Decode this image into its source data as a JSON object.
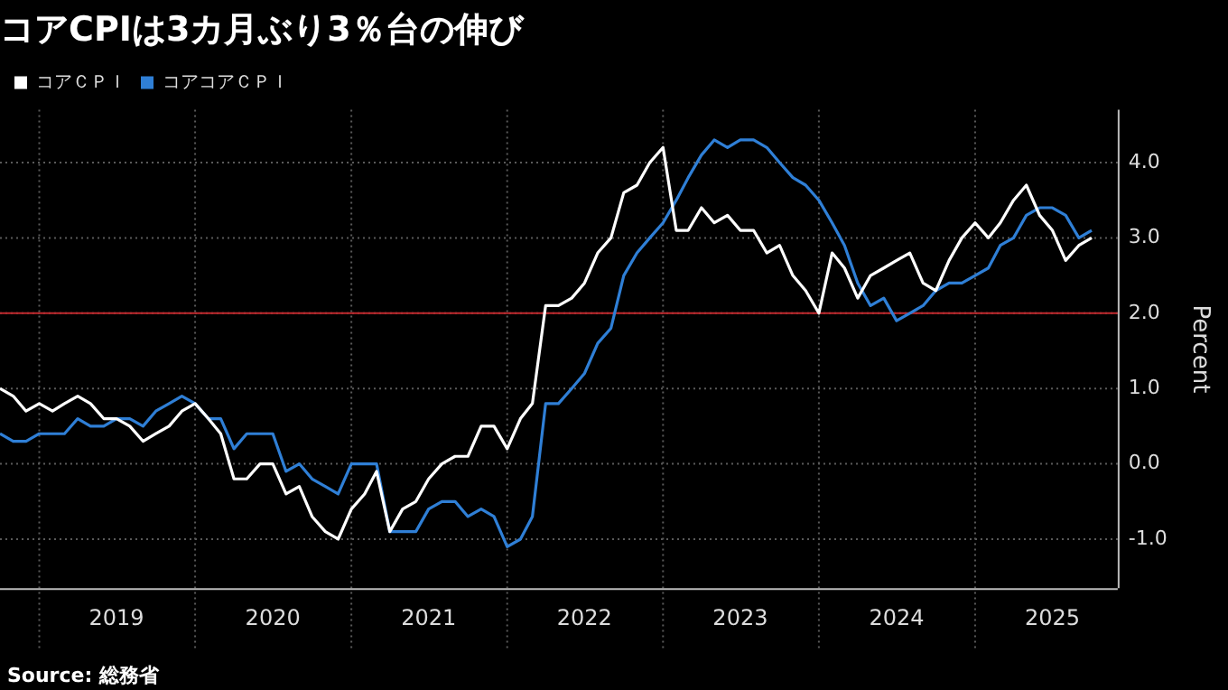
{
  "chart_data": {
    "type": "line",
    "title": "コアCPIは3カ月ぶり3％台の伸び",
    "x": [
      "2018-10",
      "2018-11",
      "2018-12",
      "2019-01",
      "2019-02",
      "2019-03",
      "2019-04",
      "2019-05",
      "2019-06",
      "2019-07",
      "2019-08",
      "2019-09",
      "2019-10",
      "2019-11",
      "2019-12",
      "2020-01",
      "2020-02",
      "2020-03",
      "2020-04",
      "2020-05",
      "2020-06",
      "2020-07",
      "2020-08",
      "2020-09",
      "2020-10",
      "2020-11",
      "2020-12",
      "2021-01",
      "2021-02",
      "2021-03",
      "2021-04",
      "2021-05",
      "2021-06",
      "2021-07",
      "2021-08",
      "2021-09",
      "2021-10",
      "2021-11",
      "2021-12",
      "2022-01",
      "2022-02",
      "2022-03",
      "2022-04",
      "2022-05",
      "2022-06",
      "2022-07",
      "2022-08",
      "2022-09",
      "2022-10",
      "2022-11",
      "2022-12",
      "2023-01",
      "2023-02",
      "2023-03",
      "2023-04",
      "2023-05",
      "2023-06",
      "2023-07",
      "2023-08",
      "2023-09",
      "2023-10",
      "2023-11",
      "2023-12",
      "2024-01",
      "2024-02",
      "2024-03",
      "2024-04",
      "2024-05",
      "2024-06",
      "2024-07",
      "2024-08",
      "2024-09",
      "2024-10",
      "2024-11",
      "2024-12",
      "2025-01",
      "2025-02",
      "2025-03",
      "2025-04",
      "2025-05",
      "2025-06",
      "2025-07",
      "2025-08",
      "2025-09",
      "2025-10"
    ],
    "series": [
      {
        "name": "コアＣＰＩ",
        "color": "#ffffff",
        "values": [
          1.0,
          0.9,
          0.7,
          0.8,
          0.7,
          0.8,
          0.9,
          0.8,
          0.6,
          0.6,
          0.5,
          0.3,
          0.4,
          0.5,
          0.7,
          0.8,
          0.6,
          0.4,
          -0.2,
          -0.2,
          0.0,
          0.0,
          -0.4,
          -0.3,
          -0.7,
          -0.9,
          -1.0,
          -0.6,
          -0.4,
          -0.1,
          -0.9,
          -0.6,
          -0.5,
          -0.2,
          0.0,
          0.1,
          0.1,
          0.5,
          0.5,
          0.2,
          0.6,
          0.8,
          2.1,
          2.1,
          2.2,
          2.4,
          2.8,
          3.0,
          3.6,
          3.7,
          4.0,
          4.2,
          3.1,
          3.1,
          3.4,
          3.2,
          3.3,
          3.1,
          3.1,
          2.8,
          2.9,
          2.5,
          2.3,
          2.0,
          2.8,
          2.6,
          2.2,
          2.5,
          2.6,
          2.7,
          2.8,
          2.4,
          2.3,
          2.7,
          3.0,
          3.2,
          3.0,
          3.2,
          3.5,
          3.7,
          3.3,
          3.1,
          2.7,
          2.9,
          3.0
        ]
      },
      {
        "name": "コアコアＣＰＩ",
        "color": "#2f7fd6",
        "values": [
          0.4,
          0.3,
          0.3,
          0.4,
          0.4,
          0.4,
          0.6,
          0.5,
          0.5,
          0.6,
          0.6,
          0.5,
          0.7,
          0.8,
          0.9,
          0.8,
          0.6,
          0.6,
          0.2,
          0.4,
          0.4,
          0.4,
          -0.1,
          0.0,
          -0.2,
          -0.3,
          -0.4,
          0.0,
          0.0,
          0.0,
          -0.9,
          -0.9,
          -0.9,
          -0.6,
          -0.5,
          -0.5,
          -0.7,
          -0.6,
          -0.7,
          -1.1,
          -1.0,
          -0.7,
          0.8,
          0.8,
          1.0,
          1.2,
          1.6,
          1.8,
          2.5,
          2.8,
          3.0,
          3.2,
          3.5,
          3.8,
          4.1,
          4.3,
          4.2,
          4.3,
          4.3,
          4.2,
          4.0,
          3.8,
          3.7,
          3.5,
          3.2,
          2.9,
          2.4,
          2.1,
          2.2,
          1.9,
          2.0,
          2.1,
          2.3,
          2.4,
          2.4,
          2.5,
          2.6,
          2.9,
          3.0,
          3.3,
          3.4,
          3.4,
          3.3,
          3.0,
          3.1
        ]
      }
    ],
    "xlim": [
      "2018-10",
      "2025-12"
    ],
    "xticks": [
      {
        "value": "2019-01",
        "label": null
      },
      {
        "value": "2019-07",
        "label": "2019"
      },
      {
        "value": "2020-01",
        "label": null
      },
      {
        "value": "2020-07",
        "label": "2020"
      },
      {
        "value": "2021-01",
        "label": null
      },
      {
        "value": "2021-07",
        "label": "2021"
      },
      {
        "value": "2022-01",
        "label": null
      },
      {
        "value": "2022-07",
        "label": "2022"
      },
      {
        "value": "2023-01",
        "label": null
      },
      {
        "value": "2023-07",
        "label": "2023"
      },
      {
        "value": "2024-01",
        "label": null
      },
      {
        "value": "2024-07",
        "label": "2024"
      },
      {
        "value": "2025-01",
        "label": null
      },
      {
        "value": "2025-07",
        "label": "2025"
      }
    ],
    "ylim": [
      -1.65,
      4.7
    ],
    "yticks": [
      {
        "value": -1,
        "label": "-1.0"
      },
      {
        "value": 0,
        "label": "0.0"
      },
      {
        "value": 1,
        "label": "1.0"
      },
      {
        "value": 2,
        "label": "2.0"
      },
      {
        "value": 3,
        "label": "3.0"
      },
      {
        "value": 4,
        "label": "4.0"
      }
    ],
    "ylabel": "Percent",
    "ref_lines": [
      {
        "axis": "y",
        "value": 2,
        "color": "#c0282d"
      }
    ],
    "annotations": [
      "Source: 総務省"
    ],
    "grid": true,
    "legend": "top left",
    "marker": "none",
    "line_style": "solid"
  }
}
